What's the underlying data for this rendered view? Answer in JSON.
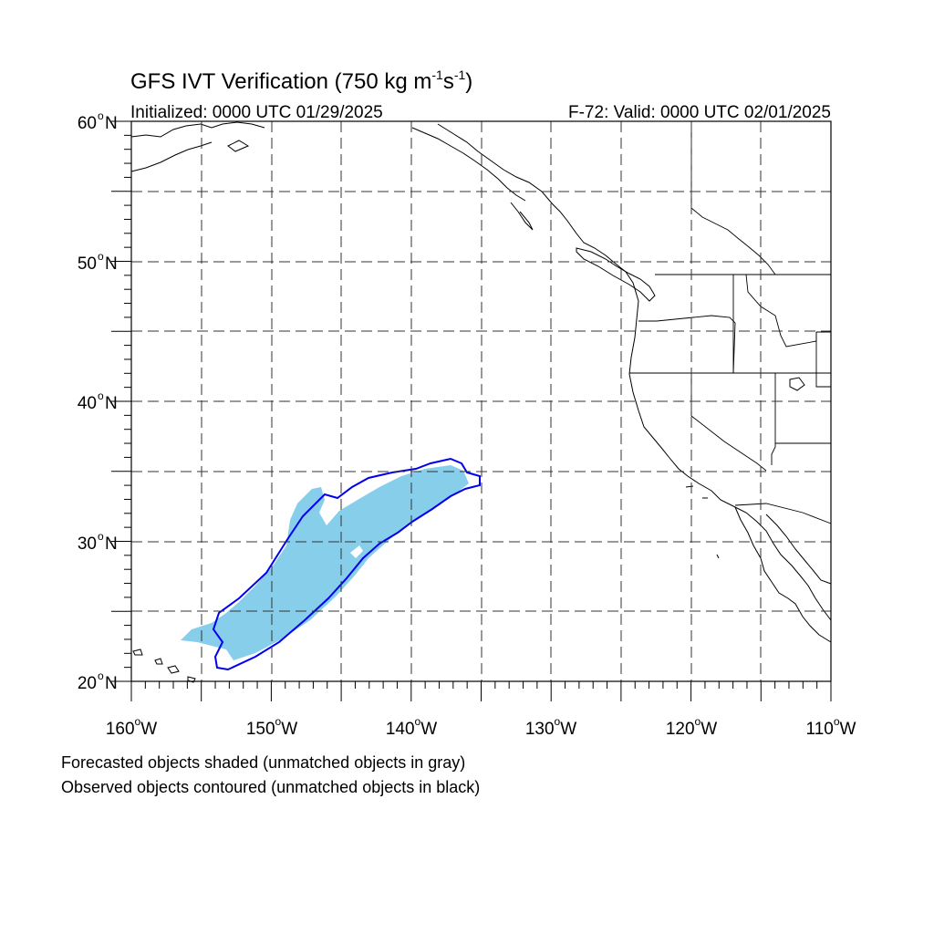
{
  "title": "GFS IVT Verification (750 kg m",
  "title_sup1": "-1",
  "title_mid": "s",
  "title_sup2": "-1",
  "title_end": ")",
  "initialized": "Initialized: 0000 UTC 01/29/2025",
  "valid": "F-72: Valid: 0000 UTC 02/01/2025",
  "note_forecast": "Forecasted objects shaded (unmatched objects in gray)",
  "note_observed": "Observed objects contoured (unmatched objects in black)",
  "lat_labels": [
    "60",
    "50",
    "40",
    "30",
    "20"
  ],
  "lon_labels": [
    "160",
    "150",
    "140",
    "130",
    "120",
    "110"
  ],
  "deg_sign": "o",
  "north": "N",
  "west": "W",
  "colors": {
    "forecast_fill": "#87ceeb",
    "observed_contour": "#0000ee",
    "coastline": "#000000"
  },
  "map": {
    "lon_range": [
      -160,
      -110
    ],
    "lat_range": [
      20,
      60
    ],
    "projection": "cylindrical equidistant",
    "grid": "dashed every 5 degrees"
  }
}
